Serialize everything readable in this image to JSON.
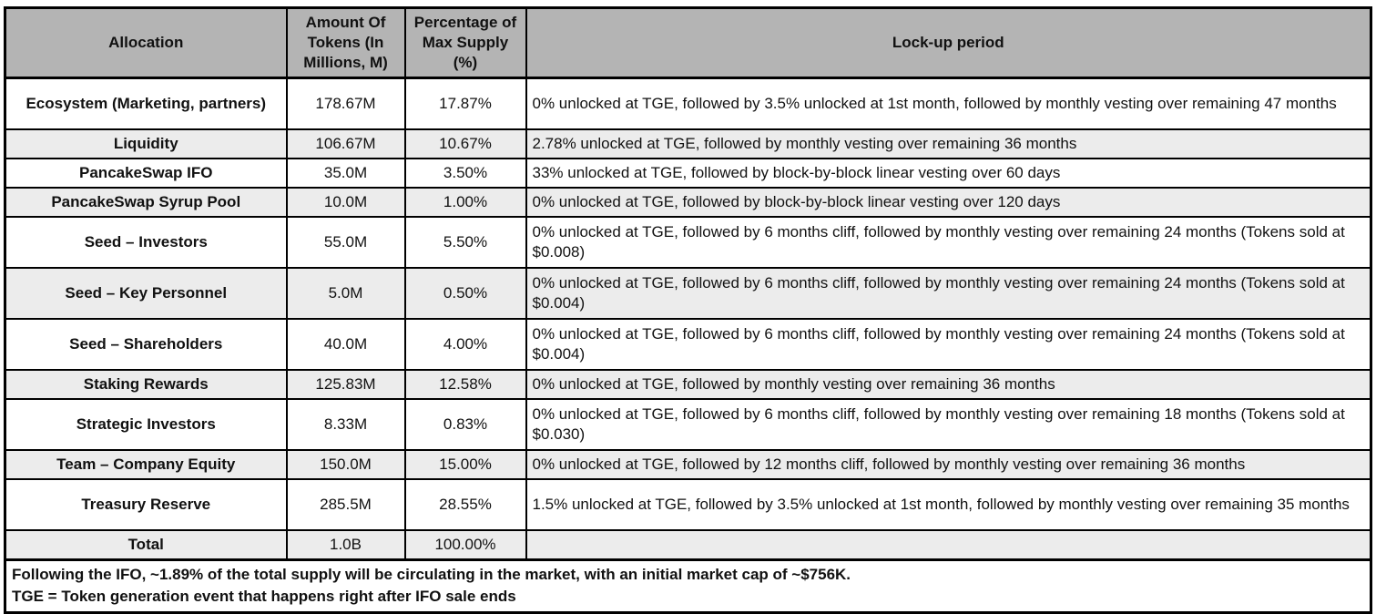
{
  "colors": {
    "header_bg": "#b4b4b4",
    "alt_row_bg": "#ececec",
    "border": "#000000",
    "text": "#111111"
  },
  "columns": {
    "allocation": "Allocation",
    "tokens": "Amount Of Tokens (In Millions, M)",
    "percent": "Percentage of Max Supply (%)",
    "lockup": "Lock-up period"
  },
  "rows": [
    {
      "allocation": "Ecosystem (Marketing, partners)",
      "tokens": "178.67M",
      "percent": "17.87%",
      "lockup": "0% unlocked at TGE, followed by 3.5% unlocked at 1st month, followed by monthly vesting over remaining 47 months"
    },
    {
      "allocation": "Liquidity",
      "tokens": "106.67M",
      "percent": "10.67%",
      "lockup": "2.78% unlocked at TGE, followed by monthly vesting over remaining 36 months"
    },
    {
      "allocation": "PancakeSwap IFO",
      "tokens": "35.0M",
      "percent": "3.50%",
      "lockup": "33% unlocked at TGE, followed by block-by-block linear vesting over 60 days"
    },
    {
      "allocation": "PancakeSwap Syrup Pool",
      "tokens": "10.0M",
      "percent": "1.00%",
      "lockup": "0% unlocked at TGE, followed by block-by-block linear vesting over 120 days"
    },
    {
      "allocation": "Seed – Investors",
      "tokens": "55.0M",
      "percent": "5.50%",
      "lockup": "0% unlocked at TGE, followed by 6 months cliff, followed by monthly vesting over remaining 24 months (Tokens sold at  $0.008)"
    },
    {
      "allocation": "Seed – Key Personnel",
      "tokens": "5.0M",
      "percent": "0.50%",
      "lockup": "0% unlocked at TGE, followed by 6 months cliff, followed by monthly vesting over remaining 24 months (Tokens sold at $0.004)"
    },
    {
      "allocation": "Seed – Shareholders",
      "tokens": "40.0M",
      "percent": "4.00%",
      "lockup": "0% unlocked at TGE, followed by 6 months cliff, followed by monthly vesting over remaining 24 months (Tokens sold at $0.004)"
    },
    {
      "allocation": "Staking Rewards",
      "tokens": "125.83M",
      "percent": "12.58%",
      "lockup": "0% unlocked at TGE, followed by monthly vesting over remaining 36 months"
    },
    {
      "allocation": "Strategic Investors",
      "tokens": "8.33M",
      "percent": "0.83%",
      "lockup": "0% unlocked at TGE, followed by 6 months cliff, followed by monthly vesting over remaining 18 months (Tokens sold at $0.030)"
    },
    {
      "allocation": "Team – Company Equity",
      "tokens": "150.0M",
      "percent": "15.00%",
      "lockup": "0% unlocked at TGE, followed by 12 months cliff, followed by monthly vesting over remaining 36 months"
    },
    {
      "allocation": "Treasury Reserve",
      "tokens": "285.5M",
      "percent": "28.55%",
      "lockup": "1.5% unlocked at TGE, followed by 3.5% unlocked at 1st month, followed by monthly vesting over remaining 35 months"
    },
    {
      "allocation": "Total",
      "tokens": "1.0B",
      "percent": "100.00%",
      "lockup": ""
    }
  ],
  "footnotes": {
    "line1": "Following the IFO, ~1.89% of the total supply will be circulating in the market, with an initial market cap of ~$756K.",
    "line2": "TGE = Token generation event that happens right after IFO sale ends"
  }
}
